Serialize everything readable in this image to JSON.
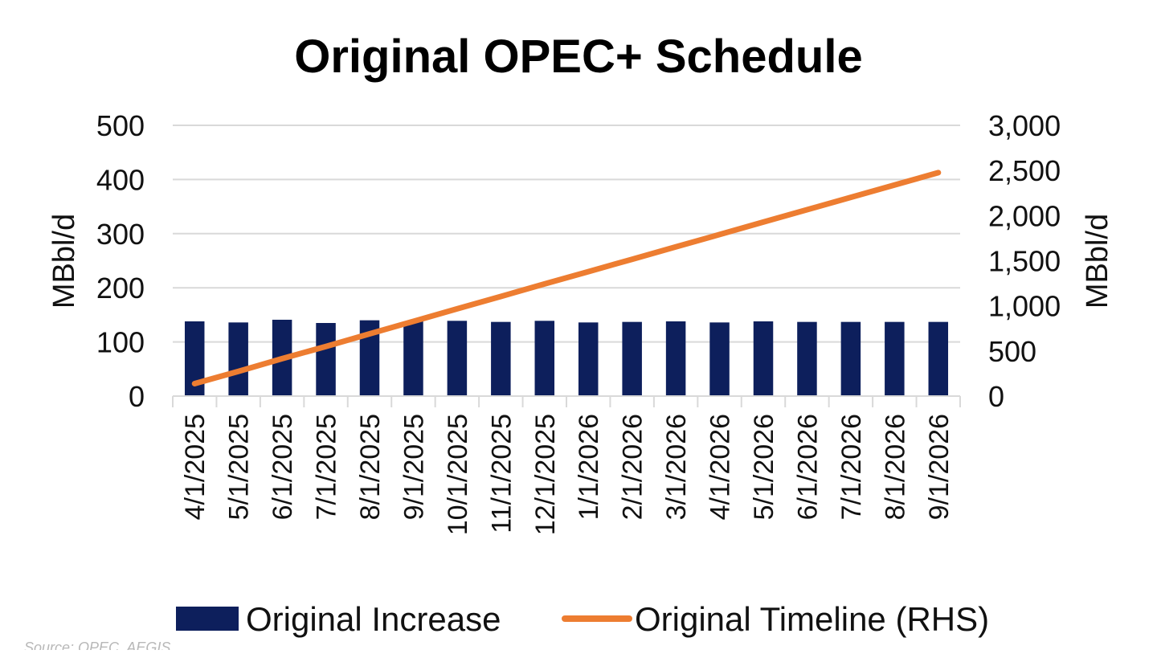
{
  "chart_data": {
    "type": "bar",
    "title": "Original OPEC+ Schedule",
    "categories": [
      "4/1/2025",
      "5/1/2025",
      "6/1/2025",
      "7/1/2025",
      "8/1/2025",
      "9/1/2025",
      "10/1/2025",
      "11/1/2025",
      "12/1/2025",
      "1/1/2026",
      "2/1/2026",
      "3/1/2026",
      "4/1/2026",
      "5/1/2026",
      "6/1/2026",
      "7/1/2026",
      "8/1/2026",
      "9/1/2026"
    ],
    "series": [
      {
        "name": "Original Increase",
        "type": "bar",
        "axis": "left",
        "color": "#0d1f5c",
        "values": [
          138,
          136,
          141,
          135,
          140,
          138,
          139,
          137,
          139,
          136,
          137,
          138,
          136,
          138,
          137,
          137,
          137,
          137
        ]
      },
      {
        "name": "Original Timeline (RHS)",
        "type": "line",
        "axis": "right",
        "color": "#ed7d31",
        "values": [
          138,
          274,
          415,
          550,
          690,
          828,
          967,
          1104,
          1243,
          1379,
          1516,
          1654,
          1790,
          1928,
          2065,
          2202,
          2339,
          2476
        ]
      }
    ],
    "ylabel": "MBbl/d",
    "y2label": "MBbl/d",
    "ylim": [
      0,
      500
    ],
    "y2lim": [
      0,
      3000
    ],
    "yticks": [
      "0",
      "100",
      "200",
      "300",
      "400",
      "500"
    ],
    "y2ticks": [
      "0",
      "500",
      "1,000",
      "1,500",
      "2,000",
      "2,500",
      "3,000"
    ],
    "grid": true,
    "legend_position": "bottom"
  },
  "source_note": "Source: OPEC, AEGIS"
}
